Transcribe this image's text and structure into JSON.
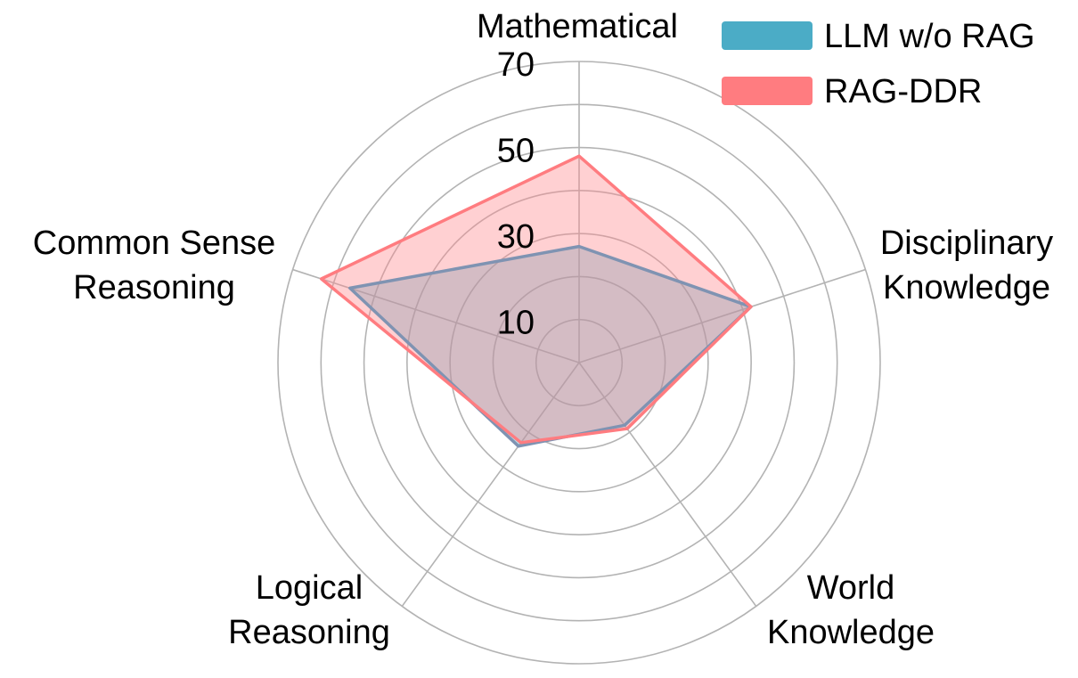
{
  "chart_data": {
    "type": "radar",
    "axes": [
      [
        "Mathematical"
      ],
      [
        "Disciplinary",
        "Knowledge"
      ],
      [
        "World",
        "Knowledge"
      ],
      [
        "Logical",
        "Reasoning"
      ],
      [
        "Common Sense",
        "Reasoning"
      ]
    ],
    "rlim": [
      0,
      70
    ],
    "ticks": [
      10,
      30,
      50,
      70
    ],
    "grid": true,
    "legend_position": "top-right",
    "series": [
      {
        "name": "LLM w/o RAG",
        "values": [
          27,
          42,
          18,
          24,
          56
        ],
        "color": "#4bacc6",
        "fill": "#4bacc6",
        "stroke": "#7f93b2"
      },
      {
        "name": "RAG-DDR",
        "values": [
          48,
          42,
          19,
          23,
          63
        ],
        "color": "#ff7c80",
        "fill": "#ff8a8f",
        "stroke": "#ff7c80"
      }
    ]
  }
}
